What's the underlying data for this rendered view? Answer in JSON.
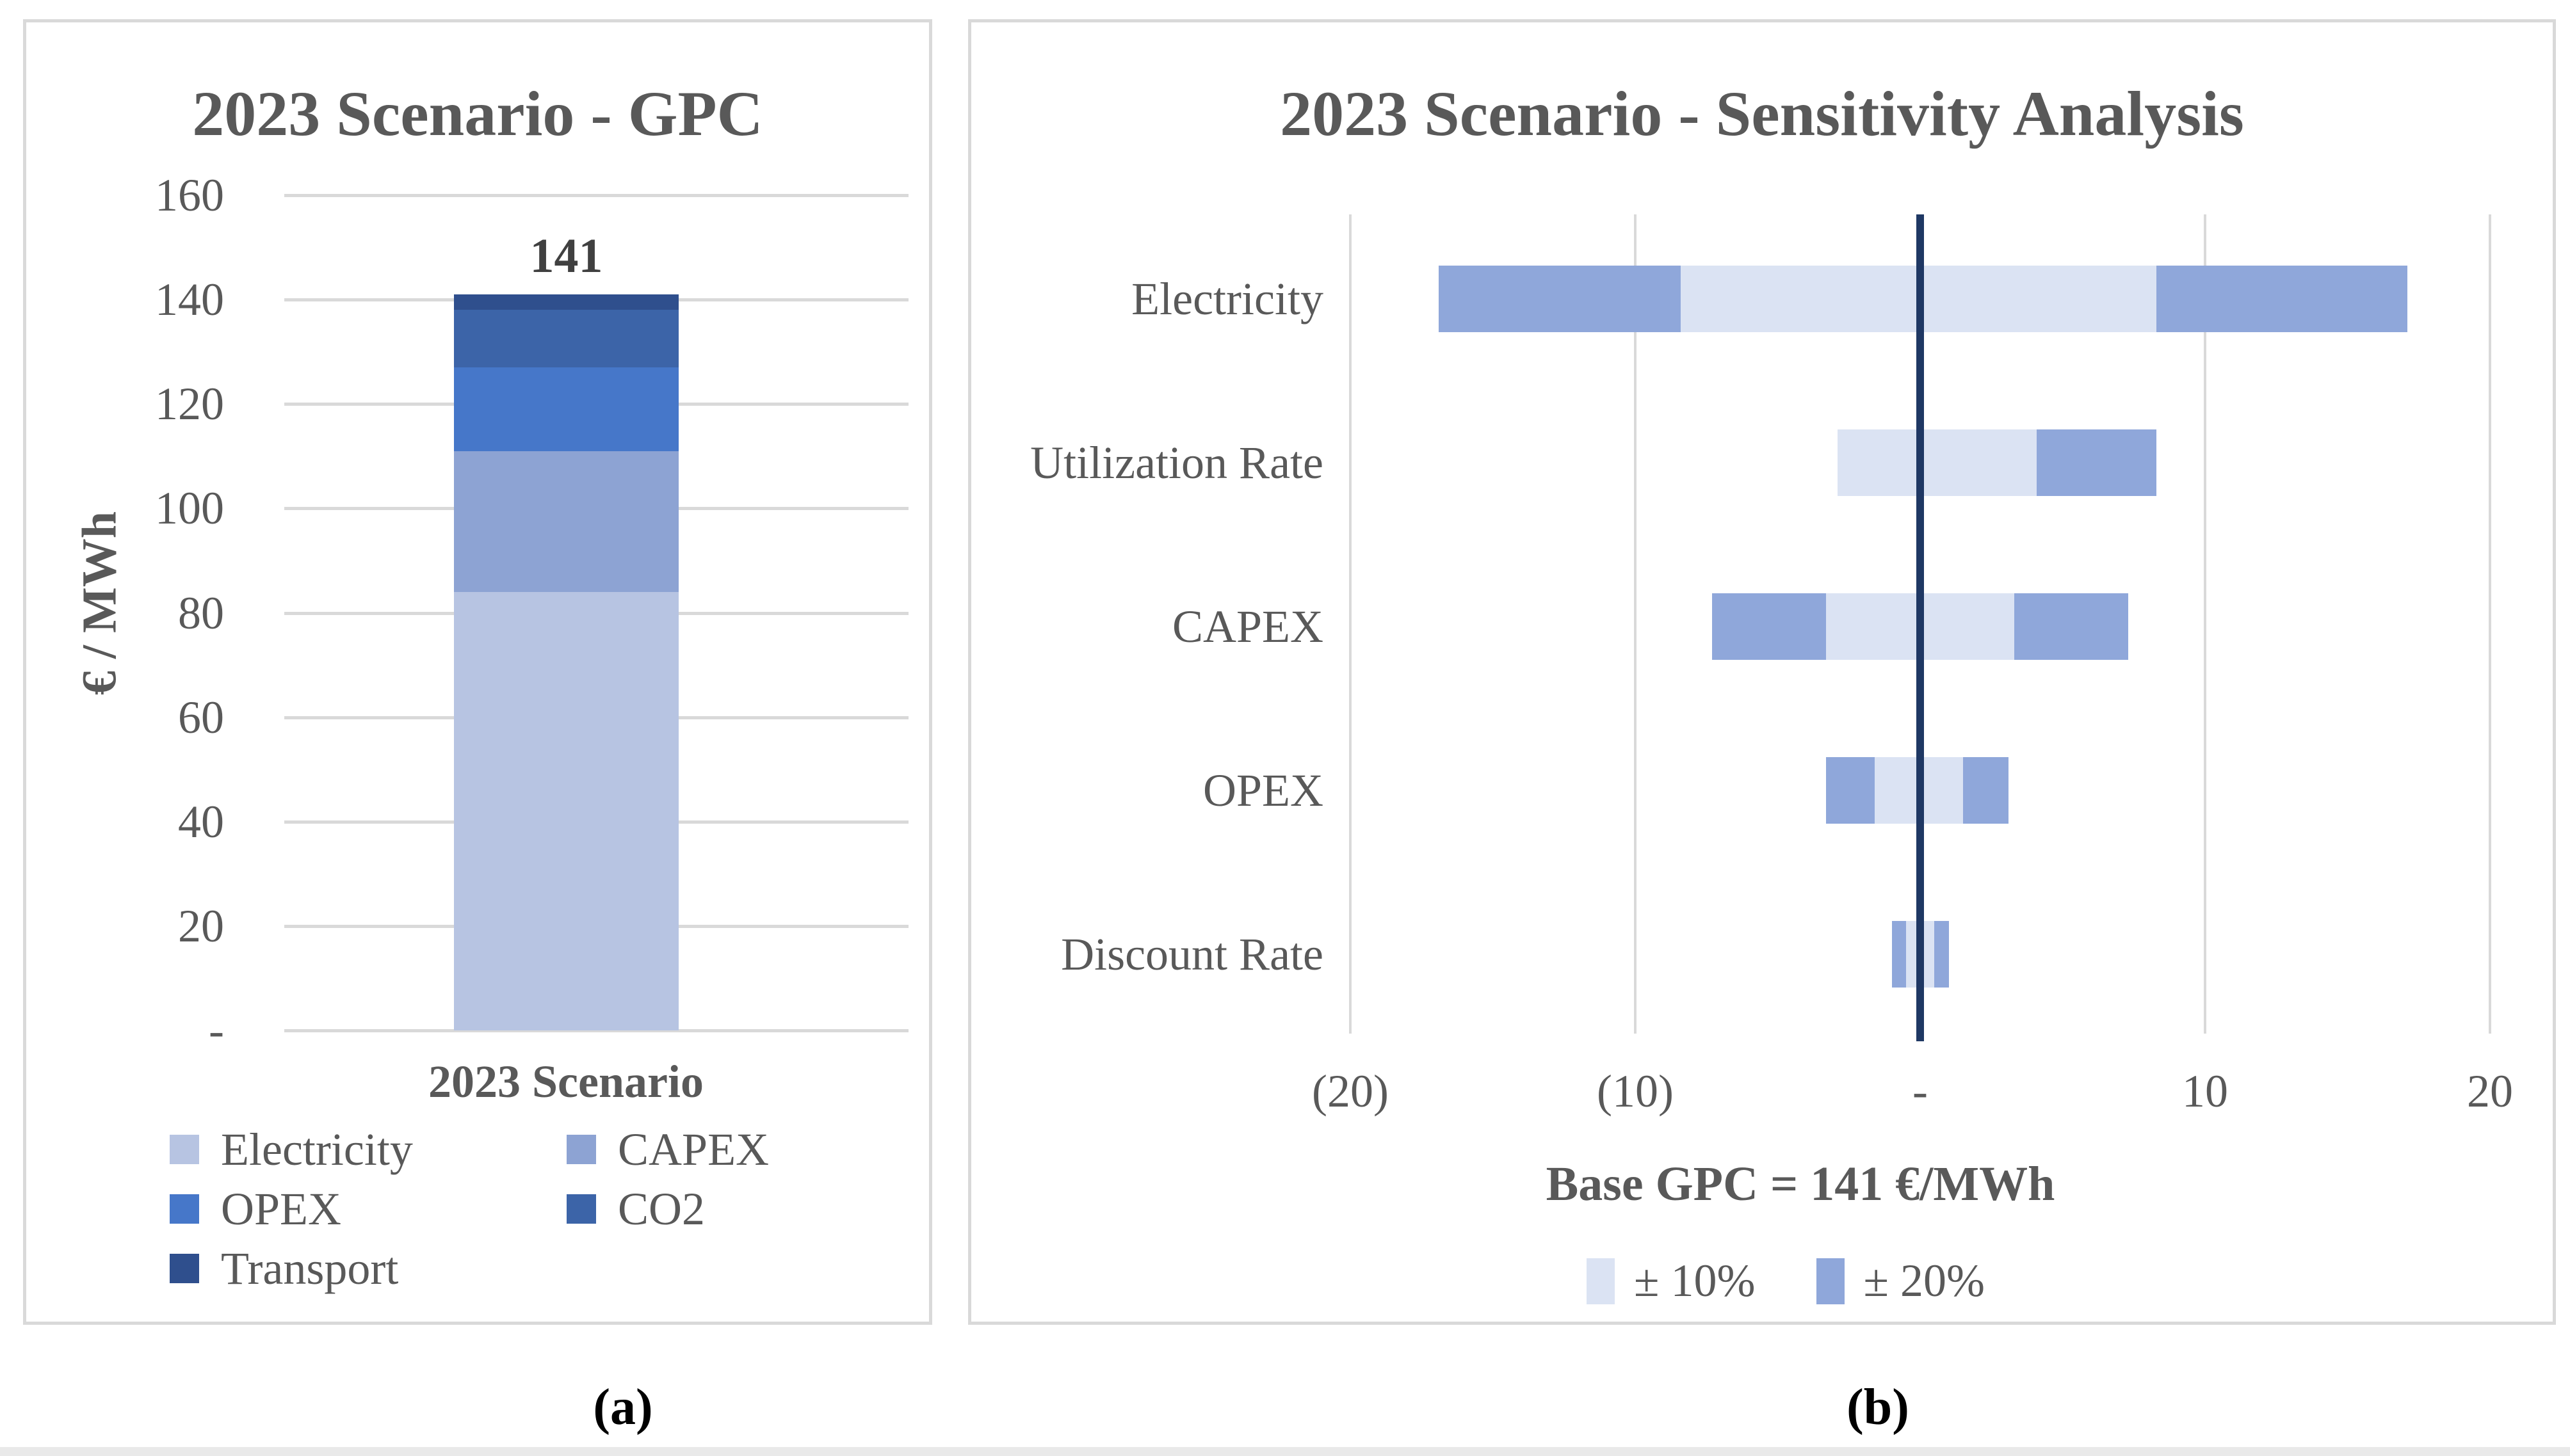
{
  "page": {
    "background": "#ffffff",
    "border_color": "#d9d9d9",
    "text_color": "#595959",
    "caption_a": "(a)",
    "caption_b": "(b)"
  },
  "left_chart": {
    "title": "2023 Scenario - GPC",
    "y_axis_title": "€ / MWh",
    "x_category_label": "2023 Scenario",
    "total_label": "141",
    "y_ticks": [
      {
        "value": 160,
        "label": "160"
      },
      {
        "value": 140,
        "label": "140"
      },
      {
        "value": 120,
        "label": "120"
      },
      {
        "value": 100,
        "label": "100"
      },
      {
        "value": 80,
        "label": "80"
      },
      {
        "value": 60,
        "label": "60"
      },
      {
        "value": 40,
        "label": "40"
      },
      {
        "value": 20,
        "label": "20"
      },
      {
        "value": 0,
        "label": "-"
      }
    ],
    "legend_columns": [
      [
        "Electricity",
        "OPEX",
        "Transport"
      ],
      [
        "CAPEX",
        "CO2"
      ]
    ]
  },
  "right_chart": {
    "title": "2023 Scenario - Sensitivity Analysis",
    "x_axis_title": "Base GPC = 141 €/MWh",
    "x_ticks": [
      {
        "value": -20,
        "label": "(20)"
      },
      {
        "value": -10,
        "label": "(10)"
      },
      {
        "value": 0,
        "label": "-"
      },
      {
        "value": 10,
        "label": "10"
      },
      {
        "value": 20,
        "label": "20"
      }
    ],
    "legend": [
      "± 10%",
      "± 20%"
    ]
  },
  "chart_data": [
    {
      "type": "bar",
      "stacked": true,
      "title": "2023 Scenario - GPC",
      "categories": [
        "2023 Scenario"
      ],
      "series": [
        {
          "name": "Electricity",
          "values": [
            84
          ],
          "color": "#B7C4E2"
        },
        {
          "name": "CAPEX",
          "values": [
            27
          ],
          "color": "#8DA3D3"
        },
        {
          "name": "OPEX",
          "values": [
            16
          ],
          "color": "#4677C9"
        },
        {
          "name": "CO2",
          "values": [
            11
          ],
          "color": "#3C64A8"
        },
        {
          "name": "Transport",
          "values": [
            3
          ],
          "color": "#2F4F8D"
        }
      ],
      "total": 141,
      "ylabel": "€ / MWh",
      "ylim": [
        0,
        160
      ],
      "ytick_step": 20,
      "grid": "horizontal",
      "legend_position": "bottom"
    },
    {
      "type": "tornado",
      "title": "2023 Scenario - Sensitivity Analysis",
      "categories": [
        "Electricity",
        "Utilization Rate",
        "CAPEX",
        "OPEX",
        "Discount Rate"
      ],
      "xlabel": "Base GPC = 141 €/MWh",
      "xlim": [
        -20,
        20
      ],
      "xticks": [
        -20,
        -10,
        0,
        10,
        20
      ],
      "baseline": {
        "value": 0,
        "color": "#1F3864"
      },
      "series": [
        {
          "name": "± 20%",
          "color": "#8FA7DA",
          "ranges": [
            [
              -16.9,
              17.1
            ],
            [
              -2.9,
              8.3
            ],
            [
              -7.3,
              7.3
            ],
            [
              -3.3,
              3.1
            ],
            [
              -1.0,
              1.0
            ]
          ]
        },
        {
          "name": "± 10%",
          "color": "#DBE3F3",
          "ranges": [
            [
              -8.4,
              8.3
            ],
            [
              -2.9,
              4.1
            ],
            [
              -3.3,
              3.3
            ],
            [
              -1.6,
              1.5
            ],
            [
              -0.5,
              0.5
            ]
          ]
        }
      ],
      "grid": "vertical",
      "legend_position": "bottom"
    }
  ]
}
